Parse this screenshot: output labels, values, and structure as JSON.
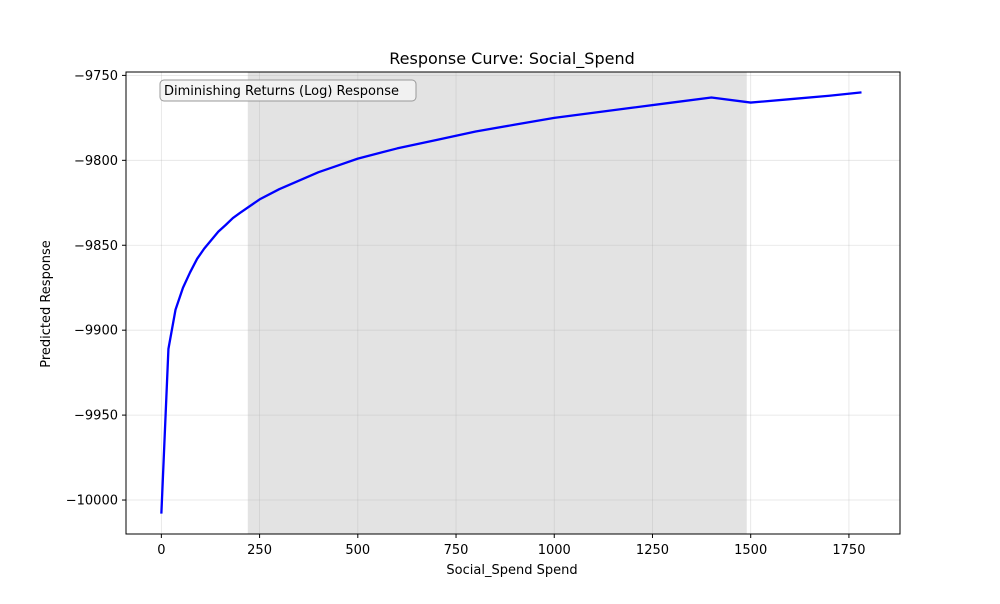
{
  "chart_data": {
    "type": "line",
    "title": "Response Curve: Social_Spend",
    "xlabel": "Social_Spend Spend",
    "ylabel": "Predicted Response",
    "xlim": [
      -90,
      1880
    ],
    "ylim": [
      -10020,
      -9748
    ],
    "x_ticks": [
      0,
      250,
      500,
      750,
      1000,
      1250,
      1500,
      1750
    ],
    "y_ticks": [
      -10000,
      -9950,
      -9900,
      -9850,
      -9800,
      -9750
    ],
    "x_tick_labels": [
      "0",
      "250",
      "500",
      "750",
      "1000",
      "1250",
      "1500",
      "1750"
    ],
    "y_tick_labels": [
      "−10000",
      "−9950",
      "−9900",
      "−9850",
      "−9800",
      "−9750"
    ],
    "grid": true,
    "annotation": "Diminishing Returns (Log) Response",
    "shaded_region": {
      "x_start": 220,
      "x_end": 1490,
      "color": "#d9d9d9"
    },
    "series": [
      {
        "color": "#0000ff",
        "x": [
          0,
          18,
          36,
          55,
          73,
          91,
          109,
          127,
          145,
          164,
          182,
          200,
          250,
          300,
          350,
          400,
          450,
          500,
          600,
          700,
          800,
          900,
          1000,
          1100,
          1200,
          1300,
          1400,
          1500,
          1600,
          1700,
          1782
        ],
        "y": [
          -10008,
          -9911,
          -9888,
          -9875,
          -9866,
          -9858,
          -9852,
          -9847,
          -9842,
          -9838,
          -9834,
          -9831,
          -9823,
          -9817,
          -9812,
          -9807,
          -9803,
          -9799,
          -9793,
          -9788,
          -9783,
          -9779,
          -9775,
          -9772,
          -9769,
          -9766,
          -9763,
          -9766,
          -9764,
          -9762,
          -9760
        ]
      }
    ]
  }
}
